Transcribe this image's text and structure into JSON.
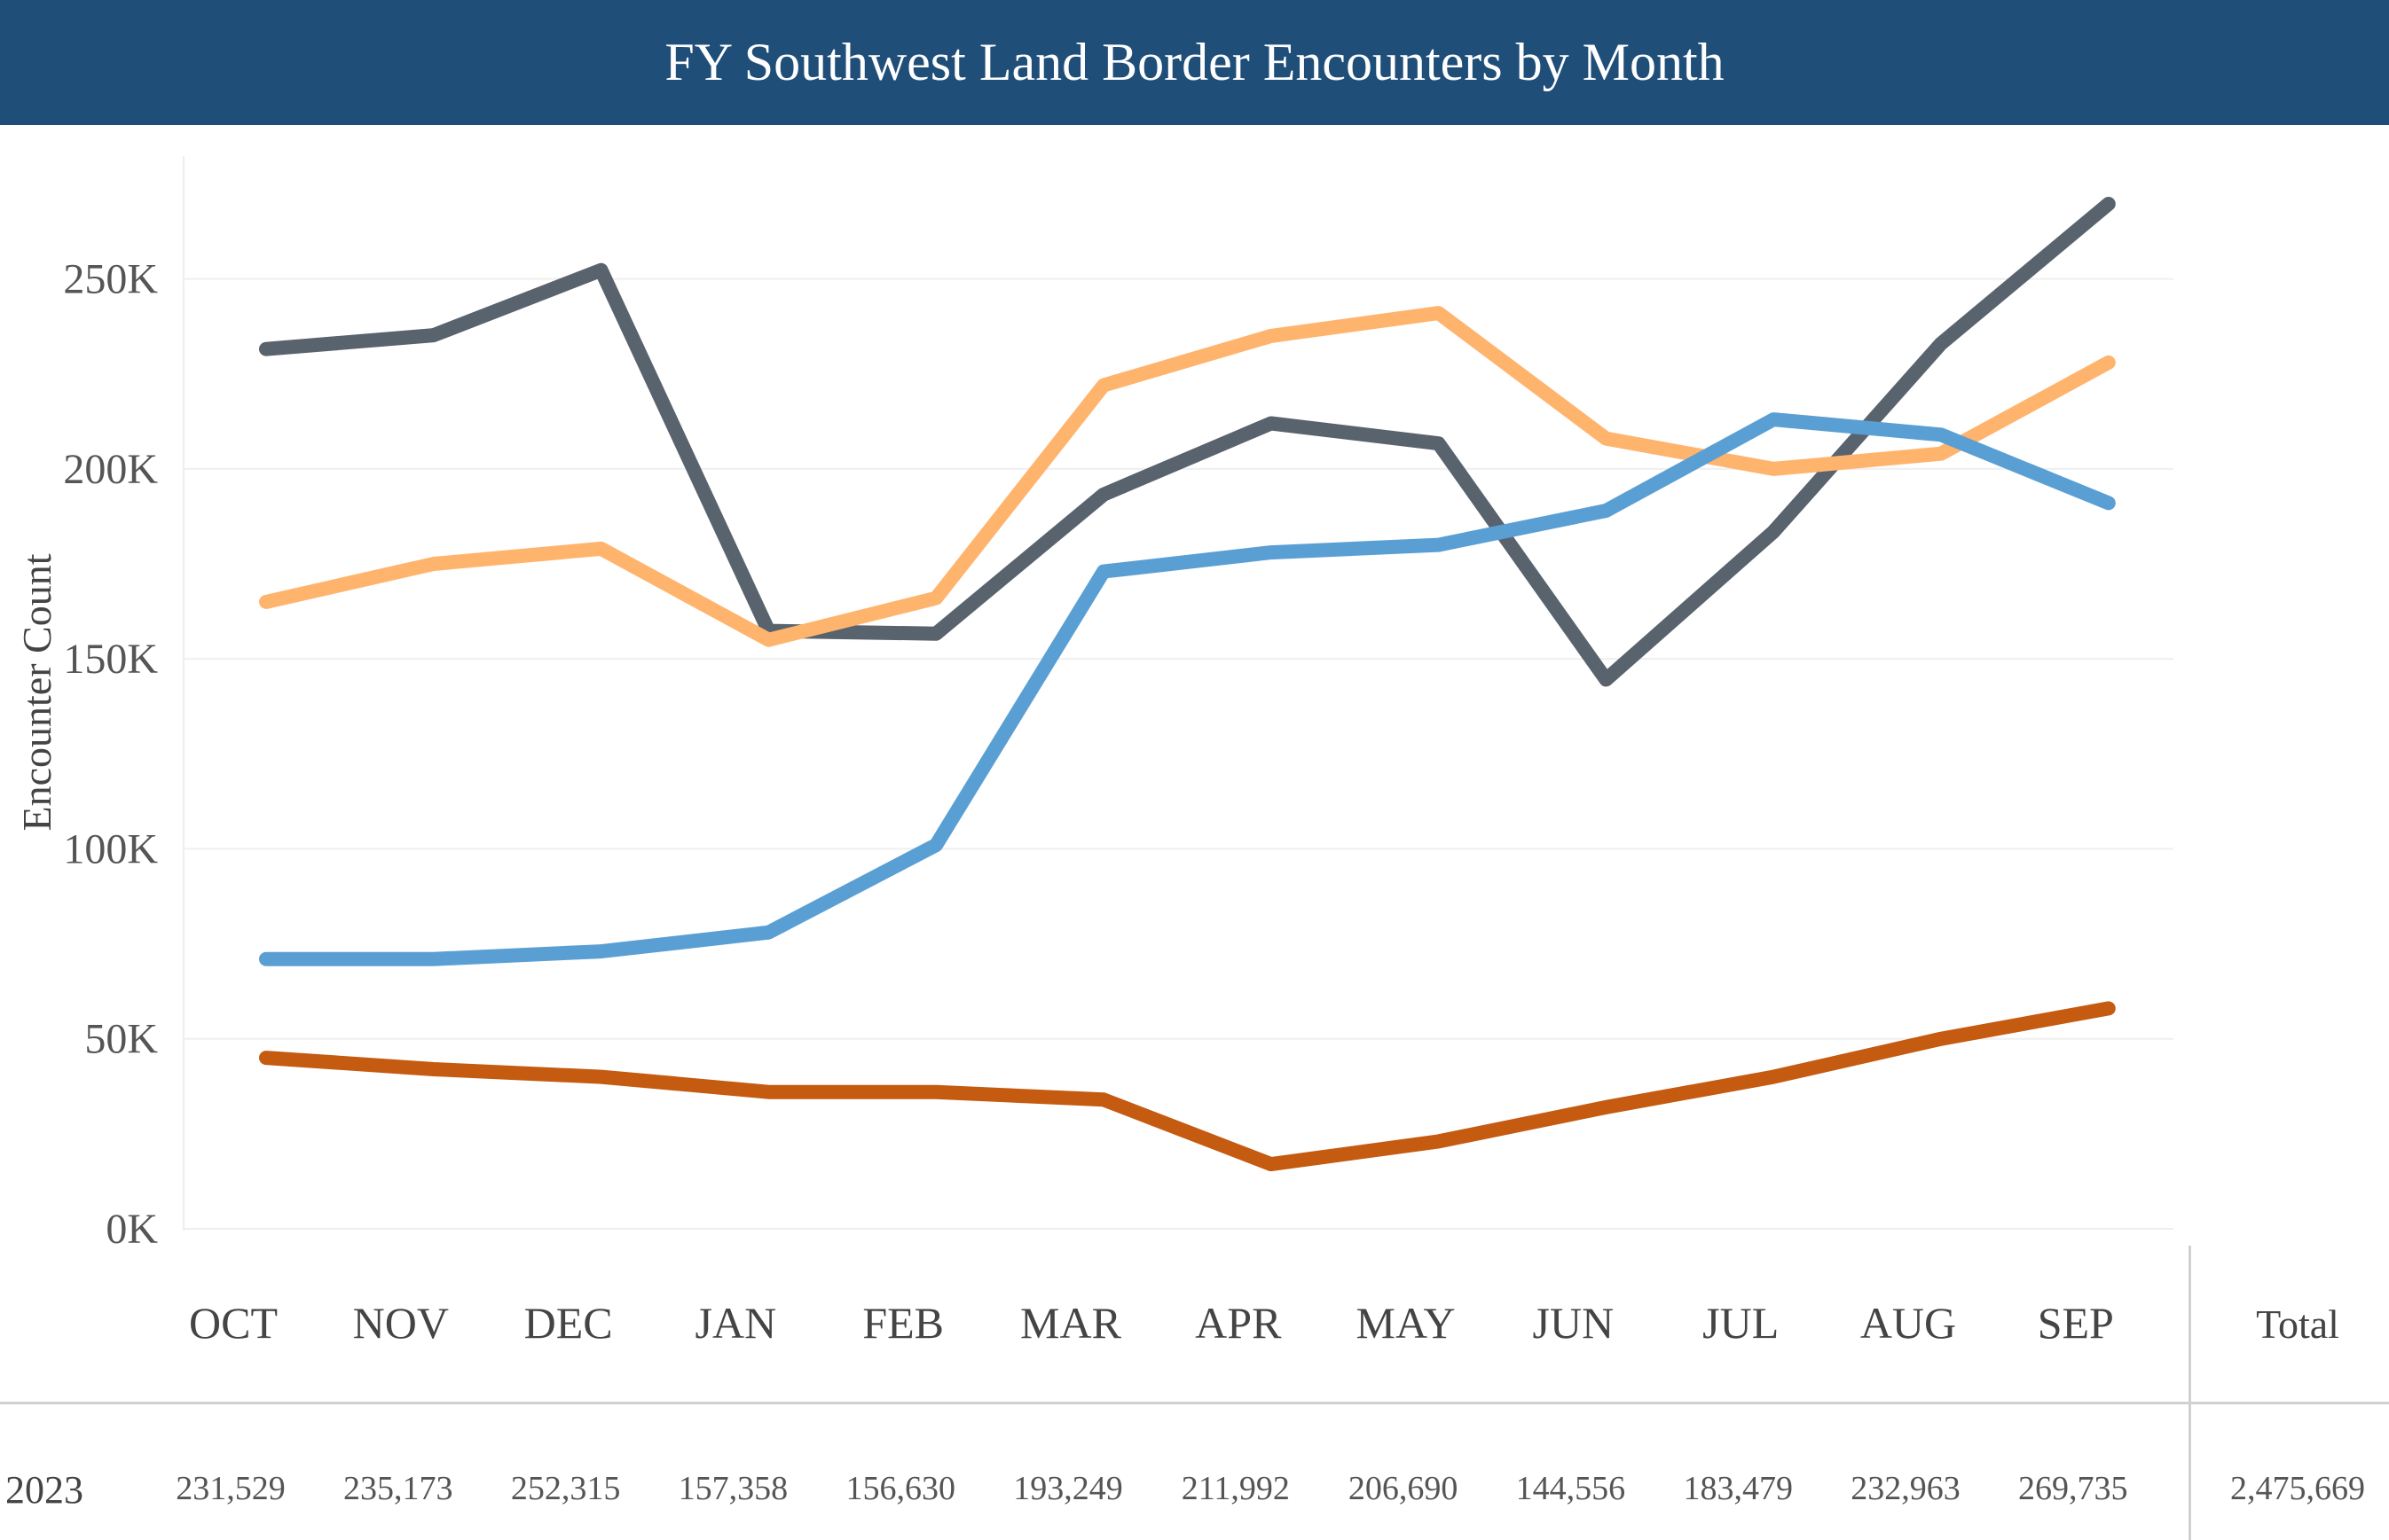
{
  "title": "FY Southwest Land Border Encounters by Month",
  "chart_data": {
    "type": "line",
    "ylabel": "Encounter Count",
    "xlabel": "",
    "ylim": [
      0,
      280000
    ],
    "yticks": [
      0,
      50000,
      100000,
      150000,
      200000,
      250000
    ],
    "ytick_labels": [
      "0K",
      "50K",
      "100K",
      "150K",
      "200K",
      "250K"
    ],
    "grid": true,
    "legend": "none",
    "categories": [
      "OCT",
      "NOV",
      "DEC",
      "JAN",
      "FEB",
      "MAR",
      "APR",
      "MAY",
      "JUN",
      "JUL",
      "AUG",
      "SEP"
    ],
    "series": [
      {
        "color": "#59636e",
        "values": [
          231529,
          235173,
          252315,
          157358,
          156630,
          193249,
          211992,
          206690,
          144556,
          183479,
          232963,
          269735
        ]
      },
      {
        "color": "#ffb46e",
        "values": [
          165000,
          175000,
          179000,
          155000,
          166000,
          222000,
          235000,
          241000,
          208000,
          200000,
          204000,
          228000
        ]
      },
      {
        "color": "#5a9fd4",
        "values": [
          71000,
          71000,
          73000,
          78000,
          101000,
          173000,
          178000,
          180000,
          189000,
          213000,
          209000,
          191000
        ]
      },
      {
        "color": "#c55a11",
        "values": [
          45000,
          42000,
          40000,
          36000,
          36000,
          34000,
          17000,
          23000,
          32000,
          40000,
          50000,
          58000
        ]
      }
    ]
  },
  "table": {
    "total_header": "Total",
    "row_label": "2023",
    "values": [
      "231,529",
      "235,173",
      "252,315",
      "157,358",
      "156,630",
      "193,249",
      "211,992",
      "206,690",
      "144,556",
      "183,479",
      "232,963",
      "269,735"
    ],
    "total": "2,475,669"
  }
}
